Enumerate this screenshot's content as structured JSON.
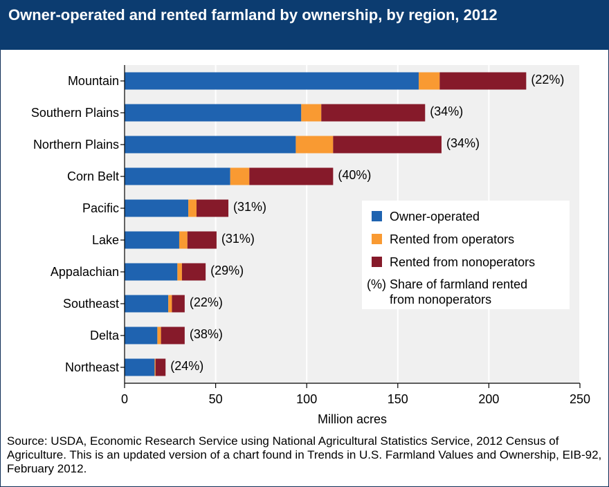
{
  "title": "Owner-operated and rented farmland by ownership, by region, 2012",
  "source": "Source: USDA, Economic Research Service using National Agricultural Statistics Service, 2012 Census of Agriculture. This is an updated version of a chart found in Trends in U.S. Farmland Values and Ownership, EIB-92, February 2012.",
  "colors": {
    "owner": "#1f63b0",
    "operators": "#f99a32",
    "nonoperators": "#861a2a",
    "plot_bg": "#f0f0f0",
    "header": "#0c3c70"
  },
  "chart_data": {
    "type": "bar",
    "orientation": "horizontal",
    "stacked": true,
    "categories": [
      "Mountain",
      "Southern Plains",
      "Northern Plains",
      "Corn Belt",
      "Pacific",
      "Lake",
      "Appalachian",
      "Southeast",
      "Delta",
      "Northeast"
    ],
    "series": [
      {
        "name": "Owner-operated",
        "color": "#1f63b0",
        "values": [
          161.5,
          97,
          94,
          58,
          35,
          30,
          29,
          24,
          18,
          16.5
        ]
      },
      {
        "name": "Rented from operators",
        "color": "#f99a32",
        "values": [
          11.5,
          11,
          20.5,
          10.5,
          4.5,
          4.5,
          2.5,
          2,
          2,
          0.5
        ]
      },
      {
        "name": "Rented from nonoperators",
        "color": "#861a2a",
        "values": [
          47.5,
          57,
          59.5,
          46,
          17.5,
          16,
          13,
          7,
          13,
          5.5
        ]
      }
    ],
    "data_labels": [
      "(22%)",
      "(34%)",
      "(34%)",
      "(40%)",
      "(31%)",
      "(31%)",
      "(29%)",
      "(22%)",
      "(38%)",
      "(24%)"
    ],
    "xlabel": "Million acres",
    "xlim": [
      0,
      250
    ],
    "xticks": [
      "0",
      "50",
      "100",
      "150",
      "200",
      "250"
    ],
    "grid": true,
    "legend": {
      "position": "center-right",
      "items": [
        "Owner-operated",
        "Rented from operators",
        "Rented from nonoperators"
      ],
      "note_symbol": "(%)",
      "note_lines": [
        "Share of farmland rented",
        "from nonoperators"
      ]
    }
  }
}
